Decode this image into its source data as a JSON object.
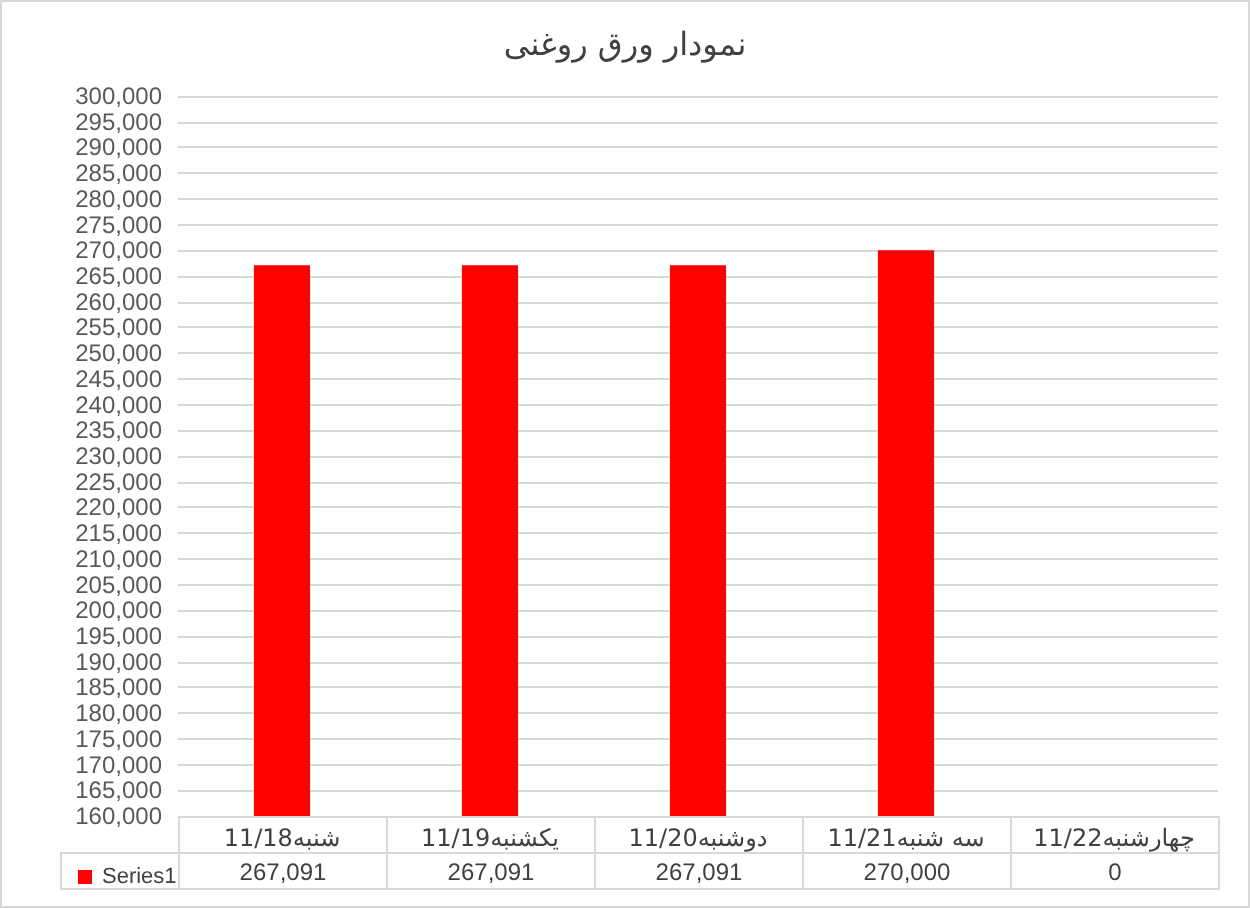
{
  "chart_data": {
    "type": "bar",
    "title": "نمودار ورق روغنی",
    "categories": [
      "11/18شنبه",
      "11/19یکشنبه",
      "11/20دوشنبه",
      "11/21سه شنبه",
      "11/22چهارشنبه"
    ],
    "series": [
      {
        "name": "Series1",
        "color": "#ff0000",
        "values": [
          267091,
          267091,
          267091,
          270000,
          null
        ],
        "value_labels": [
          "267,091",
          "267,091",
          "267,091",
          "270,000",
          "0"
        ]
      }
    ],
    "ylim": [
      160000,
      300000
    ],
    "yticks": [
      {
        "value": 160000,
        "label": "160,000"
      },
      {
        "value": 165000,
        "label": "165,000"
      },
      {
        "value": 170000,
        "label": "170,000"
      },
      {
        "value": 175000,
        "label": "175,000"
      },
      {
        "value": 180000,
        "label": "180,000"
      },
      {
        "value": 185000,
        "label": "185,000"
      },
      {
        "value": 190000,
        "label": "190,000"
      },
      {
        "value": 195000,
        "label": "195,000"
      },
      {
        "value": 200000,
        "label": "200,000"
      },
      {
        "value": 205000,
        "label": "205,000"
      },
      {
        "value": 210000,
        "label": "210,000"
      },
      {
        "value": 215000,
        "label": "215,000"
      },
      {
        "value": 220000,
        "label": "220,000"
      },
      {
        "value": 225000,
        "label": "225,000"
      },
      {
        "value": 230000,
        "label": "230,000"
      },
      {
        "value": 235000,
        "label": "235,000"
      },
      {
        "value": 240000,
        "label": "240,000"
      },
      {
        "value": 245000,
        "label": "245,000"
      },
      {
        "value": 250000,
        "label": "250,000"
      },
      {
        "value": 255000,
        "label": "255,000"
      },
      {
        "value": 260000,
        "label": "260,000"
      },
      {
        "value": 265000,
        "label": "265,000"
      },
      {
        "value": 270000,
        "label": "270,000"
      },
      {
        "value": 275000,
        "label": "275,000"
      },
      {
        "value": 280000,
        "label": "280,000"
      },
      {
        "value": 285000,
        "label": "285,000"
      },
      {
        "value": 290000,
        "label": "290,000"
      },
      {
        "value": 295000,
        "label": "295,000"
      },
      {
        "value": 300000,
        "label": "300,000"
      }
    ],
    "grid": "y",
    "legend": "bottom"
  }
}
